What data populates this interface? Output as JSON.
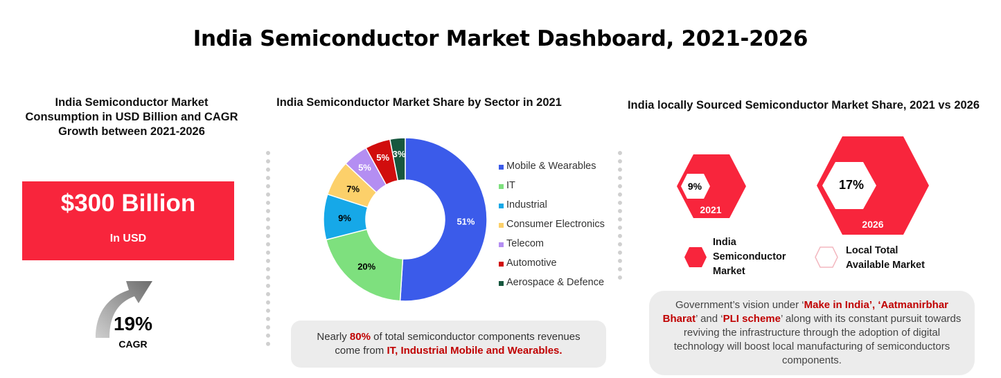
{
  "title": "India Semiconductor Market Dashboard, 2021-2026",
  "left_panel": {
    "title_lines": [
      "India Semiconductor Market",
      "Consumption in USD Billion and CAGR",
      "Growth between 2021-2026"
    ],
    "value": "$300 Billion",
    "unit": "In USD",
    "cagr_value": "19%",
    "cagr_label": "CAGR"
  },
  "middle_panel": {
    "title": "India Semiconductor Market Share by Sector in 2021",
    "note": {
      "pre": "Nearly ",
      "highlight1": "80%",
      "mid": " of total semiconductor components revenues",
      "line2_pre": "come from ",
      "highlight2": "IT, Industrial Mobile and Wearables."
    }
  },
  "right_panel": {
    "title": "India locally Sourced Semiconductor Market Share, 2021 vs 2026",
    "hex_2021": {
      "value": "9%",
      "year": "2021"
    },
    "hex_2026": {
      "value": "17%",
      "year": "2026"
    },
    "legend": [
      {
        "label_lines": [
          "India",
          "Semiconductor",
          "Market"
        ]
      },
      {
        "label_lines": [
          "Local Total",
          "Available Market"
        ]
      }
    ],
    "gov_text": {
      "pre": "Government’s vision under ‘",
      "h1": "Make in India",
      "sep1": "’, ‘",
      "h2": "Aatmanirbhar Bharat",
      "sep2": "’ and ‘",
      "h3": "PLI scheme",
      "post": "’ along with its constant pursuit towards reviving the infrastructure through the adoption of digital technology will boost local manufacturing of semiconductors components."
    }
  },
  "colors": {
    "brand_red": "#f8253c",
    "text_red": "#c00000",
    "panel_grey": "#ececec"
  },
  "chart_data": {
    "type": "pie",
    "title": "India Semiconductor Market Share by Sector in 2021",
    "categories": [
      "Mobile & Wearables",
      "IT",
      "Industrial",
      "Consumer Electronics",
      "Telecom",
      "Automotive",
      "Aerospace & Defence"
    ],
    "values": [
      51,
      20,
      9,
      7,
      5,
      5,
      3
    ],
    "labels": [
      "51%",
      "20%",
      "9%",
      "7%",
      "5%",
      "5%",
      "3%"
    ],
    "colors": [
      "#3b5bea",
      "#7ee07e",
      "#16a8e8",
      "#fcd06a",
      "#b48ef2",
      "#d10d0d",
      "#17573e"
    ],
    "label_colors": [
      "#ffffff",
      "#000000",
      "#000000",
      "#000000",
      "#ffffff",
      "#ffffff",
      "#ffffff"
    ],
    "donut": true,
    "legend_position": "right"
  }
}
